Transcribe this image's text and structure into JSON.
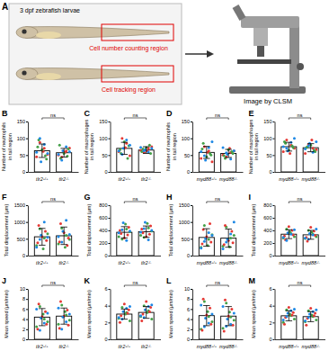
{
  "diagram": {
    "label": "A",
    "fish_caption": "3 dpf zebrafish larvae",
    "regions": [
      "Cell number counting region",
      "Cell tracking region"
    ],
    "instrument_caption": "Image by CLSM"
  },
  "chart_data": [
    {
      "panel": "B",
      "type": "bar",
      "categories": [
        "tlr2+/+",
        "tlr2-/-"
      ],
      "values": [
        63,
        57
      ],
      "errors": [
        20,
        13
      ],
      "color": "#000000",
      "ylim": [
        0,
        150
      ],
      "yticks": [
        0,
        50,
        100,
        150
      ],
      "y_label": [
        "Number of neutrophils",
        "in tail region"
      ],
      "annotation": "ns",
      "points": [
        {
          "color": "#e53935",
          "values": [
            [
              45,
              70,
              88,
              52,
              61
            ],
            [
              50,
              62,
              44,
              71,
              58
            ]
          ]
        },
        {
          "color": "#43a047",
          "values": [
            [
              95,
              38,
              66,
              74,
              48
            ],
            [
              40,
              68,
              55,
              80,
              47
            ]
          ]
        },
        {
          "color": "#1e88e5",
          "values": [
            [
              30,
              58,
              82,
              100,
              55
            ],
            [
              63,
              52,
              75,
              35,
              60
            ]
          ]
        }
      ]
    },
    {
      "panel": "C",
      "type": "bar",
      "categories": [
        "tlr2+/+",
        "tlr2-/-"
      ],
      "values": [
        70,
        65
      ],
      "errors": [
        18,
        10
      ],
      "color": "#000000",
      "ylim": [
        0,
        150
      ],
      "yticks": [
        0,
        50,
        100,
        150
      ],
      "y_label": [
        "Number of macrophages",
        "in tail region"
      ],
      "annotation": "ns",
      "points": [
        {
          "color": "#e53935",
          "values": [
            [
              60,
              85,
              100,
              48,
              72
            ],
            [
              64,
              70,
              58,
              75,
              62
            ]
          ]
        },
        {
          "color": "#43a047",
          "values": [
            [
              55,
              78,
              90,
              66,
              40
            ],
            [
              68,
              55,
              72,
              60,
              80
            ]
          ]
        },
        {
          "color": "#1e88e5",
          "values": [
            [
              70,
              62,
              95,
              52,
              80
            ],
            [
              66,
              73,
              59,
              63,
              70
            ]
          ]
        }
      ]
    },
    {
      "panel": "D",
      "type": "bar",
      "categories": [
        "myd88+/+",
        "myd88-/-"
      ],
      "values": [
        58,
        55
      ],
      "errors": [
        18,
        12
      ],
      "color": "#000000",
      "ylim": [
        0,
        150
      ],
      "yticks": [
        0,
        50,
        100,
        150
      ],
      "y_label": [
        "Number of neutrophils",
        "in tail region"
      ],
      "annotation": "ns",
      "points": [
        {
          "color": "#e53935",
          "values": [
            [
              40,
              62,
              75,
              30,
              58
            ],
            [
              50,
              58,
              45,
              62,
              70
            ]
          ]
        },
        {
          "color": "#43a047",
          "values": [
            [
              85,
              50,
              45,
              68,
              55
            ],
            [
              40,
              55,
              66,
              48,
              60
            ]
          ]
        },
        {
          "color": "#1e88e5",
          "values": [
            [
              35,
              60,
              72,
              48,
              90
            ],
            [
              52,
              72,
              38,
              57,
              63
            ]
          ]
        }
      ]
    },
    {
      "panel": "E",
      "type": "bar",
      "categories": [
        "myd88+/+",
        "myd88-/-"
      ],
      "values": [
        75,
        72
      ],
      "errors": [
        13,
        12
      ],
      "color": "#000000",
      "ylim": [
        0,
        150
      ],
      "yticks": [
        0,
        50,
        100,
        150
      ],
      "y_label": [
        "Number of macrophages",
        "in tail region"
      ],
      "annotation": "ns",
      "points": [
        {
          "color": "#e53935",
          "values": [
            [
              60,
              80,
              95,
              70,
              55
            ],
            [
              55,
              70,
              82,
              66,
              95
            ]
          ]
        },
        {
          "color": "#43a047",
          "values": [
            [
              85,
              72,
              65,
              90,
              78
            ],
            [
              75,
              60,
              80,
              72,
              64
            ]
          ]
        },
        {
          "color": "#1e88e5",
          "values": [
            [
              62,
              75,
              88,
              70,
              100
            ],
            [
              85,
              68,
              58,
              78,
              90
            ]
          ]
        }
      ]
    },
    {
      "panel": "F",
      "type": "bar",
      "categories": [
        "tlr2+/+",
        "tlr2-/-"
      ],
      "values": [
        560,
        590
      ],
      "errors": [
        250,
        260
      ],
      "color": "#000000",
      "ylim": [
        0,
        1500
      ],
      "yticks": [
        0,
        500,
        1000,
        1500
      ],
      "y_label": [
        "Total displacement (μm)"
      ],
      "annotation": "ns",
      "points": [
        {
          "color": "#43a047",
          "values": [
            [
              300,
              520,
              800,
              650,
              200
            ],
            [
              350,
              600,
              820,
              480,
              250
            ]
          ]
        },
        {
          "color": "#e53935",
          "values": [
            [
              900,
              450,
              560,
              380,
              720
            ],
            [
              950,
              520,
              680,
              410,
              300
            ]
          ]
        },
        {
          "color": "#1e88e5",
          "values": [
            [
              610,
              250,
              1000,
              480,
              540
            ],
            [
              720,
              560,
              1050,
              400,
              630
            ]
          ]
        }
      ]
    },
    {
      "panel": "G",
      "type": "bar",
      "categories": [
        "tlr2+/+",
        "tlr2-/-"
      ],
      "values": [
        370,
        380
      ],
      "errors": [
        90,
        90
      ],
      "color": "#000000",
      "ylim": [
        0,
        800
      ],
      "yticks": [
        0,
        200,
        400,
        600,
        800
      ],
      "y_label": [
        "Total displacement (μm)"
      ],
      "annotation": "ns",
      "points": [
        {
          "color": "#43a047",
          "values": [
            [
              300,
              420,
              260,
              380,
              500
            ],
            [
              320,
              440,
              290,
              390,
              510
            ]
          ]
        },
        {
          "color": "#e53935",
          "values": [
            [
              350,
              450,
              280,
              400,
              330
            ],
            [
              360,
              470,
              300,
              420,
              340
            ]
          ]
        },
        {
          "color": "#1e88e5",
          "values": [
            [
              520,
              360,
              240,
              410,
              390
            ],
            [
              530,
              370,
              250,
              430,
              400
            ]
          ]
        }
      ]
    },
    {
      "panel": "H",
      "type": "bar",
      "categories": [
        "myd88+/+",
        "myd88-/-"
      ],
      "values": [
        540,
        520
      ],
      "errors": [
        260,
        270
      ],
      "color": "#000000",
      "ylim": [
        0,
        1500
      ],
      "yticks": [
        0,
        500,
        1000,
        1500
      ],
      "y_label": [
        "Total displacement (μm)"
      ],
      "annotation": "ns",
      "points": [
        {
          "color": "#43a047",
          "values": [
            [
              250,
              480,
              900,
              620,
              300
            ],
            [
              280,
              520,
              850,
              600,
              260
            ]
          ]
        },
        {
          "color": "#e53935",
          "values": [
            [
              780,
              400,
              560,
              350,
              950
            ],
            [
              900,
              380,
              450,
              330,
              720
            ]
          ]
        },
        {
          "color": "#1e88e5",
          "values": [
            [
              500,
              220,
              680,
              420,
              600
            ],
            [
              480,
              200,
              640,
              400,
              1000
            ]
          ]
        }
      ]
    },
    {
      "panel": "I",
      "type": "bar",
      "categories": [
        "myd88+/+",
        "myd88-/-"
      ],
      "values": [
        340,
        330
      ],
      "errors": [
        70,
        70
      ],
      "color": "#000000",
      "ylim": [
        0,
        800
      ],
      "yticks": [
        0,
        200,
        400,
        600,
        800
      ],
      "y_label": [
        "Total displacement (μm)"
      ],
      "annotation": "ns",
      "points": [
        {
          "color": "#43a047",
          "values": [
            [
              280,
              350,
              420,
              300,
              380
            ],
            [
              270,
              340,
              400,
              300,
              370
            ]
          ]
        },
        {
          "color": "#e53935",
          "values": [
            [
              250,
              330,
              460,
              310,
              400
            ],
            [
              230,
              320,
              450,
              290,
              390
            ]
          ]
        },
        {
          "color": "#1e88e5",
          "values": [
            [
              360,
              290,
              340,
              240,
              410
            ],
            [
              350,
              280,
              330,
              260,
              420
            ]
          ]
        }
      ]
    },
    {
      "panel": "J",
      "type": "bar",
      "categories": [
        "tlr2+/+",
        "tlr2-/-"
      ],
      "values": [
        4.4,
        4.6
      ],
      "errors": [
        1.7,
        1.6
      ],
      "color": "#000000",
      "ylim": [
        0,
        10
      ],
      "yticks": [
        0,
        2,
        4,
        6,
        8,
        10
      ],
      "y_label": [
        "Mean speed (μm/min)"
      ],
      "annotation": "ns",
      "points": [
        {
          "color": "#43a047",
          "values": [
            [
              2.5,
              4.0,
              6.5,
              3.5,
              5.0
            ],
            [
              3.0,
              4.8,
              6.8,
              3.8,
              5.5
            ]
          ]
        },
        {
          "color": "#e53935",
          "values": [
            [
              7.0,
              3.0,
              4.5,
              2.0,
              5.5
            ],
            [
              7.5,
              2.8,
              4.6,
              2.2,
              5.8
            ]
          ]
        },
        {
          "color": "#1e88e5",
          "values": [
            [
              4.2,
              6.0,
              3.2,
              1.8,
              5.2
            ],
            [
              4.4,
              6.2,
              3.5,
              2.0,
              5.0
            ]
          ]
        }
      ]
    },
    {
      "panel": "K",
      "type": "bar",
      "categories": [
        "tlr2+/+",
        "tlr2-/-"
      ],
      "values": [
        3.0,
        3.2
      ],
      "errors": [
        0.6,
        0.7
      ],
      "color": "#000000",
      "ylim": [
        0,
        6
      ],
      "yticks": [
        0,
        2,
        4,
        6
      ],
      "y_label": [
        "Mean speed (μm/min)"
      ],
      "annotation": "ns",
      "points": [
        {
          "color": "#43a047",
          "values": [
            [
              2.5,
              3.2,
              3.8,
              2.2,
              3.0
            ],
            [
              2.7,
              3.4,
              4.0,
              2.4,
              3.2
            ]
          ]
        },
        {
          "color": "#e53935",
          "values": [
            [
              2.8,
              3.5,
              4.2,
              2.0,
              3.1
            ],
            [
              3.0,
              3.8,
              4.5,
              2.2,
              3.3
            ]
          ]
        },
        {
          "color": "#1e88e5",
          "values": [
            [
              3.3,
              2.6,
              3.7,
              2.4,
              3.9
            ],
            [
              3.5,
              2.8,
              3.9,
              2.6,
              4.1
            ]
          ]
        }
      ]
    },
    {
      "panel": "L",
      "type": "bar",
      "categories": [
        "myd88+/+",
        "myd88-/-"
      ],
      "values": [
        4.7,
        4.6
      ],
      "errors": [
        2.0,
        1.9
      ],
      "color": "#000000",
      "ylim": [
        0,
        10
      ],
      "yticks": [
        0,
        2,
        4,
        6,
        8,
        10
      ],
      "y_label": [
        "Mean speed (μm/min)"
      ],
      "annotation": "ns",
      "points": [
        {
          "color": "#43a047",
          "values": [
            [
              2.0,
              4.5,
              7.5,
              3.5,
              5.5
            ],
            [
              2.2,
              4.4,
              7.2,
              3.8,
              5.4
            ]
          ]
        },
        {
          "color": "#e53935",
          "values": [
            [
              8.0,
              3.0,
              4.8,
              1.8,
              6.2
            ],
            [
              7.8,
              2.8,
              4.6,
              1.6,
              6.0
            ]
          ]
        },
        {
          "color": "#1e88e5",
          "values": [
            [
              4.2,
              6.8,
              3.2,
              2.5,
              5.0
            ],
            [
              4.0,
              6.5,
              3.0,
              2.6,
              5.2
            ]
          ]
        }
      ]
    },
    {
      "panel": "M",
      "type": "bar",
      "categories": [
        "myd88+/+",
        "myd88-/-"
      ],
      "values": [
        2.8,
        2.7
      ],
      "errors": [
        0.6,
        0.6
      ],
      "color": "#000000",
      "ylim": [
        0,
        6
      ],
      "yticks": [
        0,
        2,
        4,
        6
      ],
      "y_label": [
        "Mean speed (μm/min)"
      ],
      "annotation": "ns",
      "points": [
        {
          "color": "#43a047",
          "values": [
            [
              2.0,
              2.8,
              3.5,
              2.4,
              3.0
            ],
            [
              2.1,
              2.7,
              3.4,
              2.3,
              2.9
            ]
          ]
        },
        {
          "color": "#e53935",
          "values": [
            [
              2.6,
              3.2,
              3.8,
              1.8,
              2.9
            ],
            [
              2.5,
              3.1,
              3.7,
              1.7,
              2.8
            ]
          ]
        },
        {
          "color": "#1e88e5",
          "values": [
            [
              3.1,
              2.3,
              3.4,
              2.7,
              3.6
            ],
            [
              3.0,
              2.2,
              3.3,
              2.6,
              3.5
            ]
          ]
        }
      ]
    }
  ]
}
